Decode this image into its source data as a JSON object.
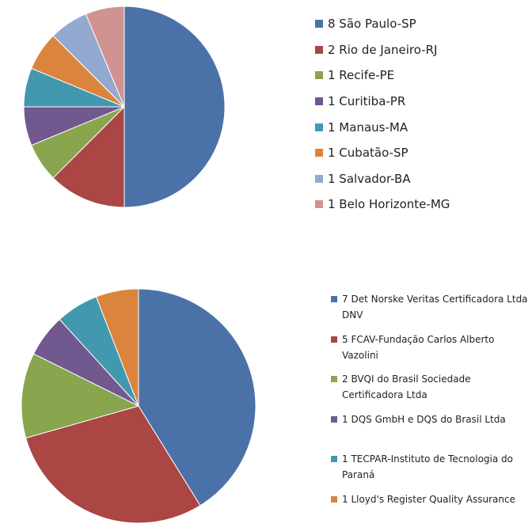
{
  "chart_data": [
    {
      "type": "pie",
      "title": "",
      "slices": [
        {
          "label": "8 São Paulo-SP",
          "value": 8,
          "color": "#4A72A8"
        },
        {
          "label": "2 Rio de Janeiro-RJ",
          "value": 2,
          "color": "#AA4643"
        },
        {
          "label": "1 Recife-PE",
          "value": 1,
          "color": "#89A54E"
        },
        {
          "label": "1 Curitiba-PR",
          "value": 1,
          "color": "#71588F"
        },
        {
          "label": "1 Manaus-MA",
          "value": 1,
          "color": "#4198AF"
        },
        {
          "label": "1 Cubatão-SP",
          "value": 1,
          "color": "#DB843D"
        },
        {
          "label": "1 Salvador-BA",
          "value": 1,
          "color": "#93A9CF"
        },
        {
          "label": "1 Belo Horizonte-MG",
          "value": 1,
          "color": "#D19392"
        }
      ],
      "legend_position": "right"
    },
    {
      "type": "pie",
      "title": "",
      "slices": [
        {
          "label": "7 Det Norske Veritas Certificadora Ltda DNV",
          "value": 7,
          "color": "#4A72A8"
        },
        {
          "label": "5 FCAV-Fundação Carlos Alberto Vazolini",
          "value": 5,
          "color": "#AA4643"
        },
        {
          "label": "2 BVQI do Brasil Sociedade Certificadora Ltda",
          "value": 2,
          "color": "#89A54E"
        },
        {
          "label": "1 DQS GmbH e DQS do Brasil Ltda",
          "value": 1,
          "color": "#71588F"
        },
        {
          "label": "1 TECPAR-Instituto  de Tecnologia do Paraná",
          "value": 1,
          "color": "#4198AF"
        },
        {
          "label": "1 Lloyd's Register Quality Assurance",
          "value": 1,
          "color": "#DB843D"
        }
      ],
      "legend_position": "right"
    }
  ]
}
